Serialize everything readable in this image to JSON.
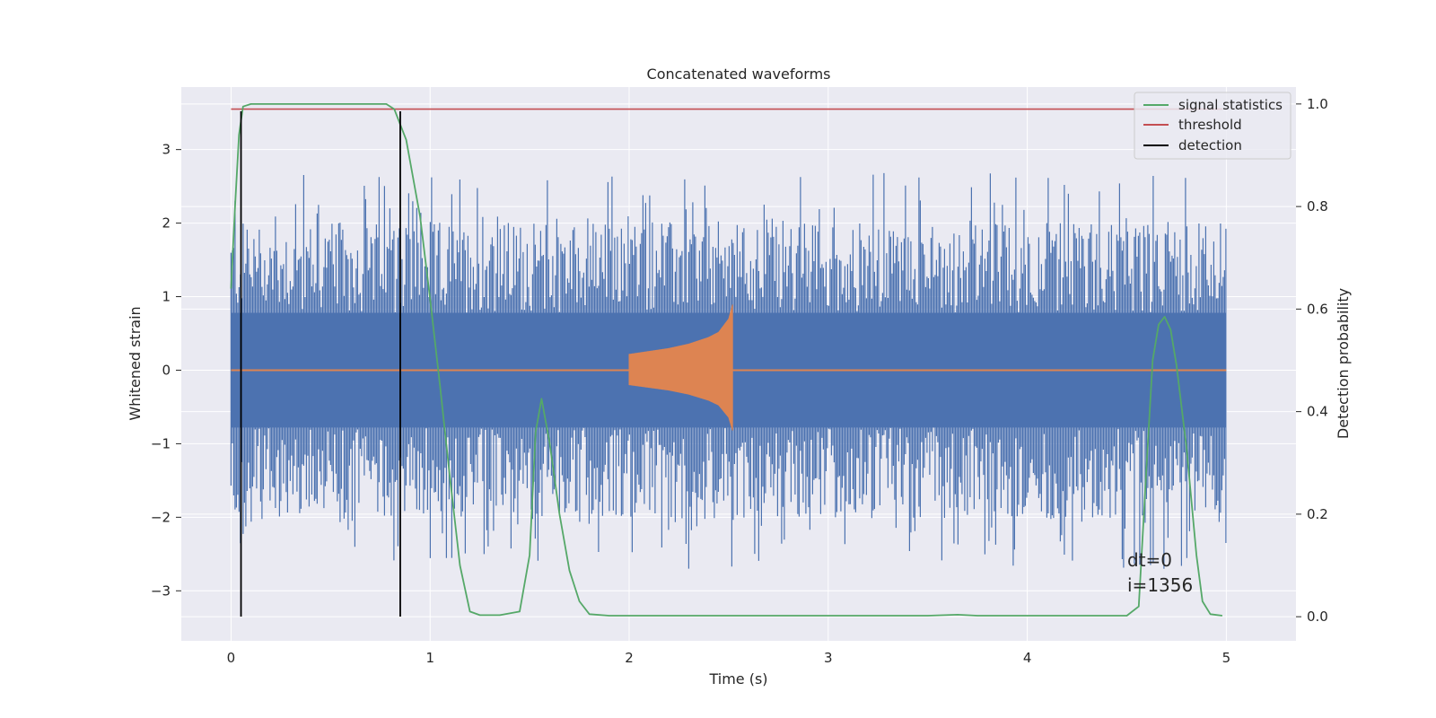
{
  "chart_data": {
    "type": "line",
    "title": "Concatenated waveforms",
    "xlabel": "Time (s)",
    "ylabel_left": "Whitened strain",
    "ylabel_right": "Detection probability",
    "xlim": [
      -0.25,
      5.35
    ],
    "ylim_left": [
      -3.68,
      3.85
    ],
    "ylim_right": [
      -0.047,
      1.033
    ],
    "xticks": [
      0,
      1,
      2,
      3,
      4,
      5
    ],
    "yticks_left": [
      -3,
      -2,
      -1,
      0,
      1,
      2,
      3
    ],
    "yticks_left_labels": [
      "−3",
      "−2",
      "−1",
      "0",
      "1",
      "2",
      "3"
    ],
    "yticks_right": [
      0.0,
      0.2,
      0.4,
      0.6,
      0.8,
      1.0
    ],
    "yticks_right_labels": [
      "0.0",
      "0.2",
      "0.4",
      "0.6",
      "0.8",
      "1.0"
    ],
    "grid": true,
    "legend_position": "top-right",
    "colors": {
      "background": "#eaeaf2",
      "grid": "#ffffff",
      "strain": "#4c72b0",
      "waveform": "#dd8452",
      "signal_statistics": "#55a868",
      "threshold": "#c44e52",
      "detection": "#000000"
    },
    "series": [
      {
        "name": "signal statistics",
        "axis": "right",
        "x": [
          0,
          0.02,
          0.04,
          0.06,
          0.1,
          0.2,
          0.5,
          0.78,
          0.82,
          0.88,
          0.95,
          1.0,
          1.05,
          1.1,
          1.15,
          1.2,
          1.25,
          1.35,
          1.45,
          1.5,
          1.53,
          1.56,
          1.6,
          1.65,
          1.7,
          1.75,
          1.8,
          1.9,
          2.5,
          3.5,
          3.65,
          3.75,
          4.0,
          4.5,
          4.56,
          4.6,
          4.63,
          4.66,
          4.69,
          4.72,
          4.75,
          4.8,
          4.85,
          4.88,
          4.92,
          4.98
        ],
        "values": [
          0.64,
          0.8,
          0.94,
          0.995,
          1.0,
          1.0,
          1.0,
          1.0,
          0.99,
          0.93,
          0.78,
          0.62,
          0.45,
          0.27,
          0.1,
          0.01,
          0.003,
          0.003,
          0.01,
          0.12,
          0.36,
          0.425,
          0.34,
          0.2,
          0.09,
          0.03,
          0.005,
          0.002,
          0.002,
          0.002,
          0.004,
          0.002,
          0.002,
          0.002,
          0.02,
          0.3,
          0.5,
          0.57,
          0.585,
          0.56,
          0.49,
          0.33,
          0.12,
          0.03,
          0.005,
          0.002
        ]
      },
      {
        "name": "threshold",
        "axis": "right",
        "x": [
          0,
          4.98
        ],
        "values": [
          0.99,
          0.99
        ]
      },
      {
        "name": "detection",
        "axis": "left",
        "x": [
          0.05,
          0.85
        ],
        "ymin": -3.35,
        "ymax": 3.52
      },
      {
        "name": "",
        "axis": "left",
        "x_range": [
          0,
          5.0
        ],
        "core_amplitude": 0.78,
        "spike_amplitude_max": 2.7
      },
      {
        "name": "",
        "axis": "left",
        "x_range": [
          2.0,
          2.52
        ],
        "envelope_x": [
          2.0,
          2.1,
          2.2,
          2.3,
          2.4,
          2.45,
          2.5,
          2.52
        ],
        "envelope_values": [
          0.22,
          0.26,
          0.3,
          0.36,
          0.45,
          0.52,
          0.7,
          0.9
        ]
      }
    ],
    "annotations": [
      "dt=0",
      "i=1356"
    ]
  }
}
